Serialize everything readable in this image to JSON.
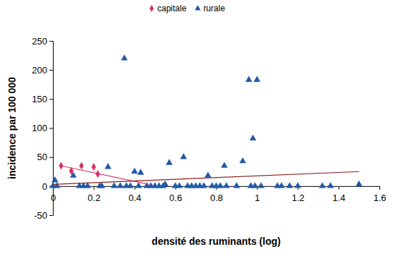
{
  "chart_data": {
    "type": "scatter",
    "x_label": "densité des ruminants (log)",
    "y_label": "incidence par 100 000",
    "xlim": [
      0,
      1.6
    ],
    "ylim": [
      -50,
      250
    ],
    "xticks": [
      0,
      0.2,
      0.4,
      0.6,
      0.8,
      1,
      1.2,
      1.4,
      1.6
    ],
    "yticks": [
      -50,
      0,
      50,
      100,
      150,
      200,
      250
    ],
    "grid": false,
    "legend": "top",
    "series": [
      {
        "name": "capitale",
        "color": "#d6336c",
        "marker": "diamond",
        "x": [
          0.04,
          0.09,
          0.14,
          0.2,
          0.22
        ],
        "values": [
          35,
          26,
          35,
          33,
          21
        ]
      },
      {
        "name": "rurale",
        "color": "#1f5aa6",
        "marker": "triangle",
        "x": [
          0.01,
          0,
          0.1,
          0.27,
          0.35,
          0.4,
          0.43,
          0.57,
          0.64,
          0.76,
          0.84,
          0.93,
          0.96,
          0.98,
          1.0,
          0.02,
          0.13,
          0.15,
          0.17,
          0.23,
          0.24,
          0.3,
          0.33,
          0.36,
          0.38,
          0.42,
          0.46,
          0.48,
          0.5,
          0.52,
          0.54,
          0.55,
          0.6,
          0.62,
          0.66,
          0.68,
          0.7,
          0.72,
          0.74,
          0.78,
          0.8,
          0.82,
          0.85,
          0.9,
          0.97,
          0.99,
          1.02,
          1.1,
          1.12,
          1.16,
          1.2,
          1.32,
          1.36,
          1.5
        ],
        "values": [
          10,
          0,
          18,
          33,
          220,
          25,
          23,
          40,
          50,
          18,
          35,
          43,
          183,
          82,
          183,
          0,
          0,
          0,
          0,
          0,
          0,
          0,
          0,
          0,
          0,
          0,
          0,
          0,
          0,
          0,
          0,
          3,
          0,
          0,
          0,
          0,
          0,
          0,
          0,
          0,
          0,
          0,
          0,
          0,
          0,
          0,
          0,
          0,
          0,
          0,
          0,
          0,
          0,
          3
        ]
      },
      {
        "type": "line",
        "color": "#d6336c",
        "line_style": "solid",
        "x": [
          0.04,
          0.47
        ],
        "values": [
          35,
          3
        ]
      },
      {
        "type": "line",
        "color": "#8b1a1a",
        "line_style": "solid",
        "x": [
          0,
          1.5
        ],
        "values": [
          3,
          25
        ]
      }
    ]
  }
}
